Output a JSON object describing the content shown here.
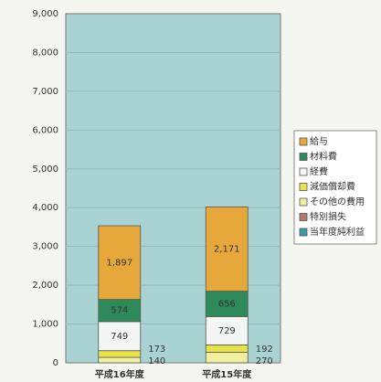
{
  "chart_data": {
    "type": "stacked_bar",
    "categories": [
      "平成16年度",
      "平成15年度"
    ],
    "series": [
      {
        "name": "給与",
        "color": "#e6a83a",
        "values": [
          1897,
          2171
        ],
        "value_labels": [
          "1,897",
          "2,171"
        ]
      },
      {
        "name": "材料費",
        "color": "#2f8a5a",
        "values": [
          574,
          656
        ]
      },
      {
        "name": "経費",
        "color": "#f3f6f4",
        "values": [
          749,
          729
        ]
      },
      {
        "name": "減価償却費",
        "color": "#e9e24a",
        "values": [
          173,
          192
        ]
      },
      {
        "name": "その他の費用",
        "color": "#f2eea0",
        "values": [
          140,
          270
        ]
      },
      {
        "name": "特別損失",
        "color": "#b07a6a",
        "values": [
          0,
          0
        ]
      },
      {
        "name": "当年度純利益",
        "color": "#3a9aa8",
        "values": [
          0,
          0
        ]
      }
    ],
    "ylim": [
      0,
      9000
    ],
    "yticks": [
      0,
      {
        "value": 1000,
        "label": "1,000"
      },
      {
        "value": 2000,
        "label": "2,000"
      },
      {
        "value": 3000,
        "label": "3,000"
      },
      {
        "value": 4000,
        "label": "4,000"
      },
      {
        "value": 5000,
        "label": "5,000"
      },
      {
        "value": 6000,
        "label": "6,000"
      },
      {
        "value": 7000,
        "label": "7,000"
      },
      {
        "value": 8000,
        "label": "8,000"
      },
      {
        "value": 9000,
        "label": "9,000"
      }
    ],
    "grid": true,
    "legend": "right",
    "plot_color": "#a8d3d2"
  }
}
